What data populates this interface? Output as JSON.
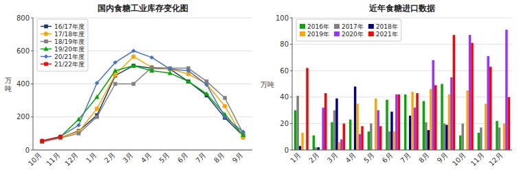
{
  "chart_data": [
    {
      "type": "line",
      "title": "国内食糖工业库存变化图",
      "y_label": "万\n吨",
      "categories": [
        "10月",
        "11月",
        "12月",
        "1月",
        "2月",
        "3月",
        "4月",
        "5月",
        "6月",
        "7月",
        "8月",
        "9月"
      ],
      "series": [
        {
          "name": "16/17年度",
          "color": "#1F3864",
          "marker": "square",
          "values": [
            50,
            75,
            115,
            210,
            450,
            510,
            495,
            490,
            415,
            330,
            195,
            85
          ]
        },
        {
          "name": "17/18年度",
          "color": "#FFA500",
          "marker": "circle",
          "values": [
            50,
            78,
            110,
            250,
            455,
            565,
            500,
            490,
            460,
            400,
            265,
            75
          ]
        },
        {
          "name": "18/19年度",
          "color": "#808080",
          "marker": "square",
          "values": [
            50,
            72,
            100,
            200,
            400,
            400,
            500,
            495,
            495,
            415,
            315,
            100
          ]
        },
        {
          "name": "19/20年度",
          "color": "#00AA00",
          "marker": "triangle",
          "values": [
            55,
            80,
            185,
            320,
            480,
            510,
            480,
            465,
            415,
            340,
            215,
            90
          ]
        },
        {
          "name": "20/21年度",
          "color": "#4472C4",
          "marker": "diamond",
          "values": [
            55,
            82,
            150,
            405,
            530,
            600,
            560,
            490,
            480,
            395,
            200,
            110
          ]
        },
        {
          "name": "21/22年度",
          "color": "#FF0000",
          "marker": "square",
          "values": [
            55,
            80,
            null,
            null,
            null,
            null,
            null,
            null,
            null,
            null,
            null,
            null
          ]
        }
      ],
      "ylim": [
        0,
        800
      ],
      "yticks": [
        0,
        200,
        400,
        600,
        800
      ],
      "grid": true,
      "legend": "upper-left"
    },
    {
      "type": "bar",
      "title": "近年食糖进口数据",
      "y_label": "万吨",
      "categories": [
        "1月",
        "2月",
        "3月",
        "4月",
        "5月",
        "6月",
        "7月",
        "8月",
        "9月",
        "10月",
        "11月",
        "12月"
      ],
      "series": [
        {
          "name": "2016年",
          "color": "#00AA00",
          "values": [
            30,
            11,
            21,
            23,
            14,
            38,
            42,
            37,
            50,
            11,
            13,
            22
          ]
        },
        {
          "name": "2017年",
          "color": "#808080",
          "values": [
            41,
            2,
            30,
            0,
            20,
            14,
            0,
            21,
            20,
            20,
            17,
            17
          ]
        },
        {
          "name": "2018年",
          "color": "#000080",
          "values": [
            3,
            2,
            39,
            48,
            0,
            29,
            26,
            15,
            19,
            0,
            0,
            0
          ]
        },
        {
          "name": "2019年",
          "color": "#FFA500",
          "values": [
            13,
            0,
            6,
            35,
            39,
            14,
            44,
            46,
            42,
            45,
            35,
            20
          ]
        },
        {
          "name": "2020年",
          "color": "#9B30FF",
          "values": [
            0,
            32,
            8,
            12,
            30,
            42,
            32,
            68,
            55,
            87,
            71,
            91
          ]
        },
        {
          "name": "2021年",
          "color": "#FF0000",
          "values": [
            62,
            43,
            20,
            18,
            18,
            42,
            43,
            49,
            87,
            81,
            63,
            40
          ]
        }
      ],
      "ylim": [
        0,
        100
      ],
      "yticks": [
        0,
        20,
        40,
        60,
        80,
        100
      ],
      "grid": true,
      "legend": "upper-left"
    }
  ]
}
